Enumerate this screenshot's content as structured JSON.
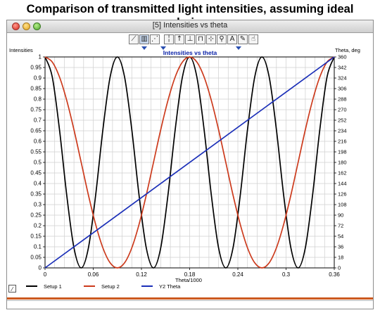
{
  "caption": "Comparison of transmitted light intensities, assuming ideal polarizers",
  "window": {
    "title": "[5]  Intensities vs theta"
  },
  "toolbar": {
    "buttons": [
      "line-chart-icon",
      "bar-chart-icon",
      "scatter-icon",
      "cursor-icon",
      "axis-icon",
      "range-icon",
      "zoom-icon",
      "text-icon",
      "pencil-icon",
      "hand-icon"
    ]
  },
  "plot": {
    "title": "Intensities vs theta",
    "left_axis_label": "Intensities",
    "right_axis_label": "Theta, deg",
    "x_axis_label": "Theta/1000"
  },
  "colors": {
    "setup1": "#000000",
    "setup2": "#cc3a1c",
    "theta": "#1b2fb8",
    "plot_title": "#0a22a8",
    "grid": "#cfcfcf"
  },
  "chart_data": {
    "type": "line",
    "title": "Intensities vs theta",
    "xlabel": "Theta/1000",
    "ylabel": "Intensities",
    "y2label": "Theta, deg",
    "xlim": [
      0,
      0.36
    ],
    "ylim": [
      0,
      1
    ],
    "y2lim": [
      0,
      360
    ],
    "x_ticks": [
      "0",
      "0.06",
      "0.12",
      "0.18",
      "0.24",
      "0.3",
      "0.36"
    ],
    "y_ticks": [
      "0",
      "0.05",
      "0.1",
      "0.15",
      "0.2",
      "0.25",
      "0.3",
      "0.35",
      "0.4",
      "0.45",
      "0.5",
      "0.55",
      "0.6",
      "0.65",
      "0.7",
      "0.75",
      "0.8",
      "0.85",
      "0.9",
      "0.95",
      "1"
    ],
    "y2_ticks": [
      "0",
      "18",
      "36",
      "54",
      "72",
      "90",
      "108",
      "126",
      "144",
      "162",
      "180",
      "198",
      "216",
      "234",
      "252",
      "270",
      "288",
      "306",
      "324",
      "342",
      "360"
    ],
    "grid": true,
    "legend_position": "bottom",
    "series": [
      {
        "name": "Setup 1",
        "axis": "left",
        "x": [
          0,
          0.009,
          0.018,
          0.027,
          0.036,
          0.045,
          0.054,
          0.063,
          0.072,
          0.081,
          0.09,
          0.099,
          0.108,
          0.117,
          0.126,
          0.135,
          0.144,
          0.153,
          0.162,
          0.171,
          0.18,
          0.189,
          0.198,
          0.207,
          0.216,
          0.225,
          0.234,
          0.243,
          0.252,
          0.261,
          0.27,
          0.279,
          0.288,
          0.297,
          0.306,
          0.315,
          0.324,
          0.333,
          0.342,
          0.351,
          0.36
        ],
        "values": [
          1,
          0.905,
          0.655,
          0.345,
          0.095,
          0,
          0.095,
          0.345,
          0.655,
          0.905,
          1,
          0.905,
          0.655,
          0.345,
          0.095,
          0,
          0.095,
          0.345,
          0.655,
          0.905,
          1,
          0.905,
          0.655,
          0.345,
          0.095,
          0,
          0.095,
          0.345,
          0.655,
          0.905,
          1,
          0.905,
          0.655,
          0.345,
          0.095,
          0,
          0.095,
          0.345,
          0.655,
          0.905,
          1
        ]
      },
      {
        "name": "Setup 2",
        "axis": "left",
        "x": [
          0,
          0.009,
          0.018,
          0.027,
          0.036,
          0.045,
          0.054,
          0.063,
          0.072,
          0.081,
          0.09,
          0.099,
          0.108,
          0.117,
          0.126,
          0.135,
          0.144,
          0.153,
          0.162,
          0.171,
          0.18,
          0.189,
          0.198,
          0.207,
          0.216,
          0.225,
          0.234,
          0.243,
          0.252,
          0.261,
          0.27,
          0.279,
          0.288,
          0.297,
          0.306,
          0.315,
          0.324,
          0.333,
          0.342,
          0.351,
          0.36
        ],
        "values": [
          1,
          0.976,
          0.905,
          0.794,
          0.655,
          0.5,
          0.345,
          0.206,
          0.095,
          0.024,
          0,
          0.024,
          0.095,
          0.206,
          0.345,
          0.5,
          0.655,
          0.794,
          0.905,
          0.976,
          1,
          0.976,
          0.905,
          0.794,
          0.655,
          0.5,
          0.345,
          0.206,
          0.095,
          0.024,
          0,
          0.024,
          0.095,
          0.206,
          0.345,
          0.5,
          0.655,
          0.794,
          0.905,
          0.976,
          1
        ]
      },
      {
        "name": "Y2 Theta",
        "axis": "right",
        "x": [
          0,
          0.36
        ],
        "values": [
          0,
          360
        ]
      }
    ]
  }
}
